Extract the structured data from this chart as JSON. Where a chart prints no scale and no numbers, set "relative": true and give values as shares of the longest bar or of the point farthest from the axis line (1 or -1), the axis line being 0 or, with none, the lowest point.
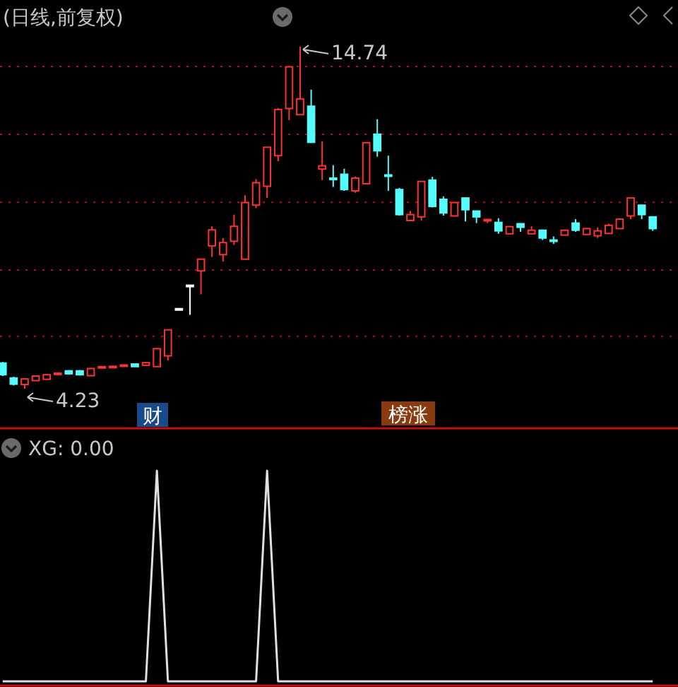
{
  "chart_data": [
    {
      "type": "candlestick",
      "title": "(日线,前复权)",
      "grid": "y",
      "categories": [
        null,
        null,
        null,
        null,
        null,
        null,
        null,
        null,
        null,
        null,
        null,
        null,
        null,
        null,
        null,
        null,
        null,
        null,
        null,
        null,
        null,
        null,
        null,
        null,
        null,
        null,
        null,
        null,
        null,
        null,
        null,
        null,
        null,
        null,
        null,
        null,
        null,
        null,
        null,
        null,
        null,
        null,
        null,
        null,
        null,
        null,
        null,
        null,
        null,
        null,
        null,
        null,
        null,
        null,
        null,
        null,
        null,
        null,
        null,
        null
      ],
      "yticks": [
        {
          "value": 5.84,
          "label": null
        },
        {
          "value": 7.88,
          "label": null
        },
        {
          "value": 9.96,
          "label": null
        },
        {
          "value": 12.05,
          "label": null
        },
        {
          "value": 14.13,
          "label": null
        }
      ],
      "ohlc": [
        [
          5.02,
          5.05,
          4.62,
          4.66
        ],
        [
          4.56,
          4.6,
          4.33,
          4.37
        ],
        [
          4.36,
          4.55,
          4.23,
          4.53
        ],
        [
          4.48,
          4.63,
          4.47,
          4.62
        ],
        [
          4.52,
          4.68,
          4.5,
          4.66
        ],
        [
          4.7,
          4.72,
          4.69,
          4.71
        ],
        [
          4.78,
          4.8,
          4.67,
          4.69
        ],
        [
          4.78,
          4.8,
          4.64,
          4.66
        ],
        [
          4.63,
          4.87,
          4.62,
          4.85
        ],
        [
          4.9,
          4.92,
          4.89,
          4.91
        ],
        [
          4.91,
          4.93,
          4.9,
          4.92
        ],
        [
          4.95,
          4.97,
          4.94,
          4.96
        ],
        [
          4.99,
          5.0,
          4.9,
          4.91
        ],
        [
          4.95,
          5.05,
          4.94,
          5.03
        ],
        [
          4.91,
          5.48,
          4.9,
          5.46
        ],
        [
          5.24,
          6.05,
          5.1,
          6.04
        ],
        [
          6.69,
          6.69,
          6.69,
          6.69
        ],
        [
          7.41,
          7.41,
          6.5,
          7.41
        ],
        [
          7.85,
          8.22,
          7.13,
          8.21
        ],
        [
          8.62,
          9.22,
          8.28,
          9.11
        ],
        [
          8.35,
          8.86,
          8.14,
          8.72
        ],
        [
          8.76,
          9.58,
          8.65,
          9.22
        ],
        [
          8.21,
          10.17,
          8.21,
          9.95
        ],
        [
          9.87,
          10.67,
          9.78,
          10.56
        ],
        [
          10.45,
          11.65,
          10.09,
          11.65
        ],
        [
          11.39,
          12.85,
          11.22,
          12.81
        ],
        [
          12.84,
          14.12,
          12.48,
          14.12
        ],
        [
          12.65,
          14.74,
          12.65,
          13.13
        ],
        [
          12.91,
          13.42,
          11.8,
          11.8
        ],
        [
          10.98,
          11.83,
          10.64,
          11.08
        ],
        [
          10.7,
          11.1,
          10.43,
          10.66
        ],
        [
          10.82,
          10.99,
          10.31,
          10.35
        ],
        [
          10.31,
          10.75,
          10.25,
          10.7
        ],
        [
          10.53,
          11.79,
          10.53,
          11.79
        ],
        [
          12.05,
          12.51,
          11.36,
          11.54
        ],
        [
          10.8,
          11.39,
          10.31,
          10.76
        ],
        [
          10.35,
          10.4,
          9.55,
          9.58
        ],
        [
          9.4,
          9.69,
          9.38,
          9.58
        ],
        [
          9.51,
          10.6,
          9.4,
          10.6
        ],
        [
          10.64,
          10.74,
          9.8,
          9.83
        ],
        [
          10.05,
          10.14,
          9.55,
          9.63
        ],
        [
          9.54,
          9.97,
          9.52,
          9.95
        ],
        [
          10.09,
          10.1,
          9.37,
          9.73
        ],
        [
          9.69,
          9.7,
          9.32,
          9.51
        ],
        [
          9.4,
          9.43,
          9.32,
          9.43
        ],
        [
          9.34,
          9.47,
          8.99,
          9.08
        ],
        [
          8.99,
          9.23,
          8.98,
          9.21
        ],
        [
          9.3,
          9.31,
          9.05,
          9.19
        ],
        [
          8.99,
          9.22,
          8.98,
          9.1
        ],
        [
          9.1,
          9.12,
          8.8,
          8.86
        ],
        [
          8.8,
          8.91,
          8.68,
          8.77
        ],
        [
          8.95,
          9.12,
          8.94,
          9.1
        ],
        [
          9.32,
          9.44,
          9.05,
          9.1
        ],
        [
          8.97,
          9.17,
          8.96,
          9.15
        ],
        [
          8.93,
          9.19,
          8.86,
          9.08
        ],
        [
          9.0,
          9.3,
          8.99,
          9.25
        ],
        [
          9.15,
          9.46,
          9.14,
          9.44
        ],
        [
          9.54,
          10.1,
          9.44,
          10.09
        ],
        [
          9.87,
          9.87,
          9.44,
          9.58
        ],
        [
          9.51,
          9.53,
          9.08,
          9.15
        ]
      ],
      "annotations": [
        "14.74",
        "4.23",
        "财",
        "榜涨"
      ]
    },
    {
      "type": "line",
      "title": "XG: 0.00",
      "relative": true,
      "categories": [
        null,
        null,
        null,
        null,
        null,
        null,
        null,
        null,
        null,
        null,
        null,
        null,
        null,
        null,
        null,
        null,
        null,
        null,
        null,
        null,
        null,
        null,
        null,
        null,
        null,
        null,
        null,
        null,
        null,
        null,
        null,
        null,
        null,
        null,
        null,
        null,
        null,
        null,
        null,
        null,
        null,
        null,
        null,
        null,
        null,
        null,
        null,
        null,
        null,
        null,
        null,
        null,
        null,
        null,
        null,
        null,
        null,
        null,
        null,
        null
      ],
      "series": [
        {
          "color": "#e0e0e0",
          "values": [
            0,
            0,
            0,
            0,
            0,
            0,
            0,
            0,
            0,
            0,
            0,
            0,
            0,
            0,
            1,
            0,
            0,
            0,
            0,
            0,
            0,
            0,
            0,
            0,
            1,
            0,
            0,
            0,
            0,
            0,
            0,
            0,
            0,
            0,
            0,
            0,
            0,
            0,
            0,
            0,
            0,
            0,
            0,
            0,
            0,
            0,
            0,
            0,
            0,
            0,
            0,
            0,
            0,
            0,
            0,
            0,
            0,
            0,
            0,
            0
          ]
        }
      ]
    }
  ]
}
